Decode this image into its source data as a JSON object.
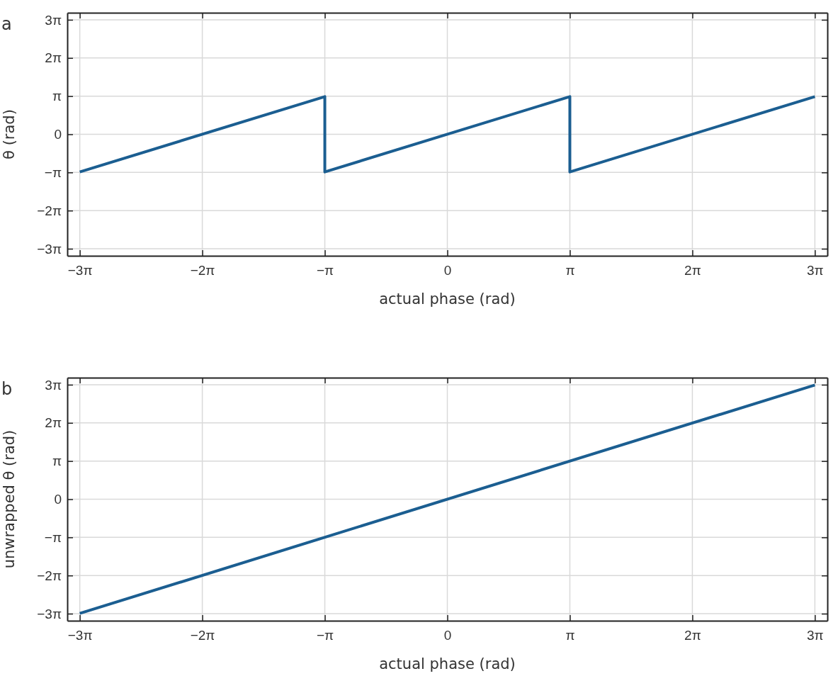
{
  "chart_data": [
    {
      "type": "line",
      "title": "a",
      "xlabel": "actual phase (rad)",
      "ylabel": "θ (rad)",
      "grid": true,
      "marker": "none",
      "line_style": "solid",
      "xlim": [
        -9.74,
        9.74
      ],
      "ylim": [
        -10.0,
        10.0
      ],
      "xticks": [
        {
          "value": -9.42,
          "label": "−3π"
        },
        {
          "value": -6.28,
          "label": "−2π"
        },
        {
          "value": -3.14,
          "label": "−π"
        },
        {
          "value": 0,
          "label": "0"
        },
        {
          "value": 3.14,
          "label": "π"
        },
        {
          "value": 6.28,
          "label": "2π"
        },
        {
          "value": 9.42,
          "label": "3π"
        }
      ],
      "yticks": [
        {
          "value": -9.42,
          "label": "−3π"
        },
        {
          "value": -6.28,
          "label": "−2π"
        },
        {
          "value": -3.14,
          "label": "−π"
        },
        {
          "value": 0,
          "label": "0"
        },
        {
          "value": 3.14,
          "label": "π"
        },
        {
          "value": 6.28,
          "label": "2π"
        },
        {
          "value": 9.42,
          "label": "3π"
        }
      ],
      "series": [
        {
          "color": "#1b5e91",
          "x": [
            -9.42,
            -3.14,
            -3.14,
            3.14,
            3.14,
            9.42
          ],
          "values": [
            -3.1,
            3.1,
            -3.1,
            3.1,
            -3.1,
            3.1
          ]
        }
      ]
    },
    {
      "type": "line",
      "title": "b",
      "xlabel": "actual phase (rad)",
      "ylabel": "unwrapped θ (rad)",
      "grid": true,
      "marker": "none",
      "line_style": "solid",
      "xlim": [
        -9.74,
        9.74
      ],
      "ylim": [
        -10.0,
        10.0
      ],
      "xticks": [
        {
          "value": -9.42,
          "label": "−3π"
        },
        {
          "value": -6.28,
          "label": "−2π"
        },
        {
          "value": -3.14,
          "label": "−π"
        },
        {
          "value": 0,
          "label": "0"
        },
        {
          "value": 3.14,
          "label": "π"
        },
        {
          "value": 6.28,
          "label": "2π"
        },
        {
          "value": 9.42,
          "label": "3π"
        }
      ],
      "yticks": [
        {
          "value": -9.42,
          "label": "−3π"
        },
        {
          "value": -6.28,
          "label": "−2π"
        },
        {
          "value": -3.14,
          "label": "−π"
        },
        {
          "value": 0,
          "label": "0"
        },
        {
          "value": 3.14,
          "label": "π"
        },
        {
          "value": 6.28,
          "label": "2π"
        },
        {
          "value": 9.42,
          "label": "3π"
        }
      ],
      "series": [
        {
          "color": "#1b5e91",
          "x": [
            -9.42,
            9.42
          ],
          "values": [
            -9.4,
            9.4
          ]
        }
      ]
    }
  ]
}
